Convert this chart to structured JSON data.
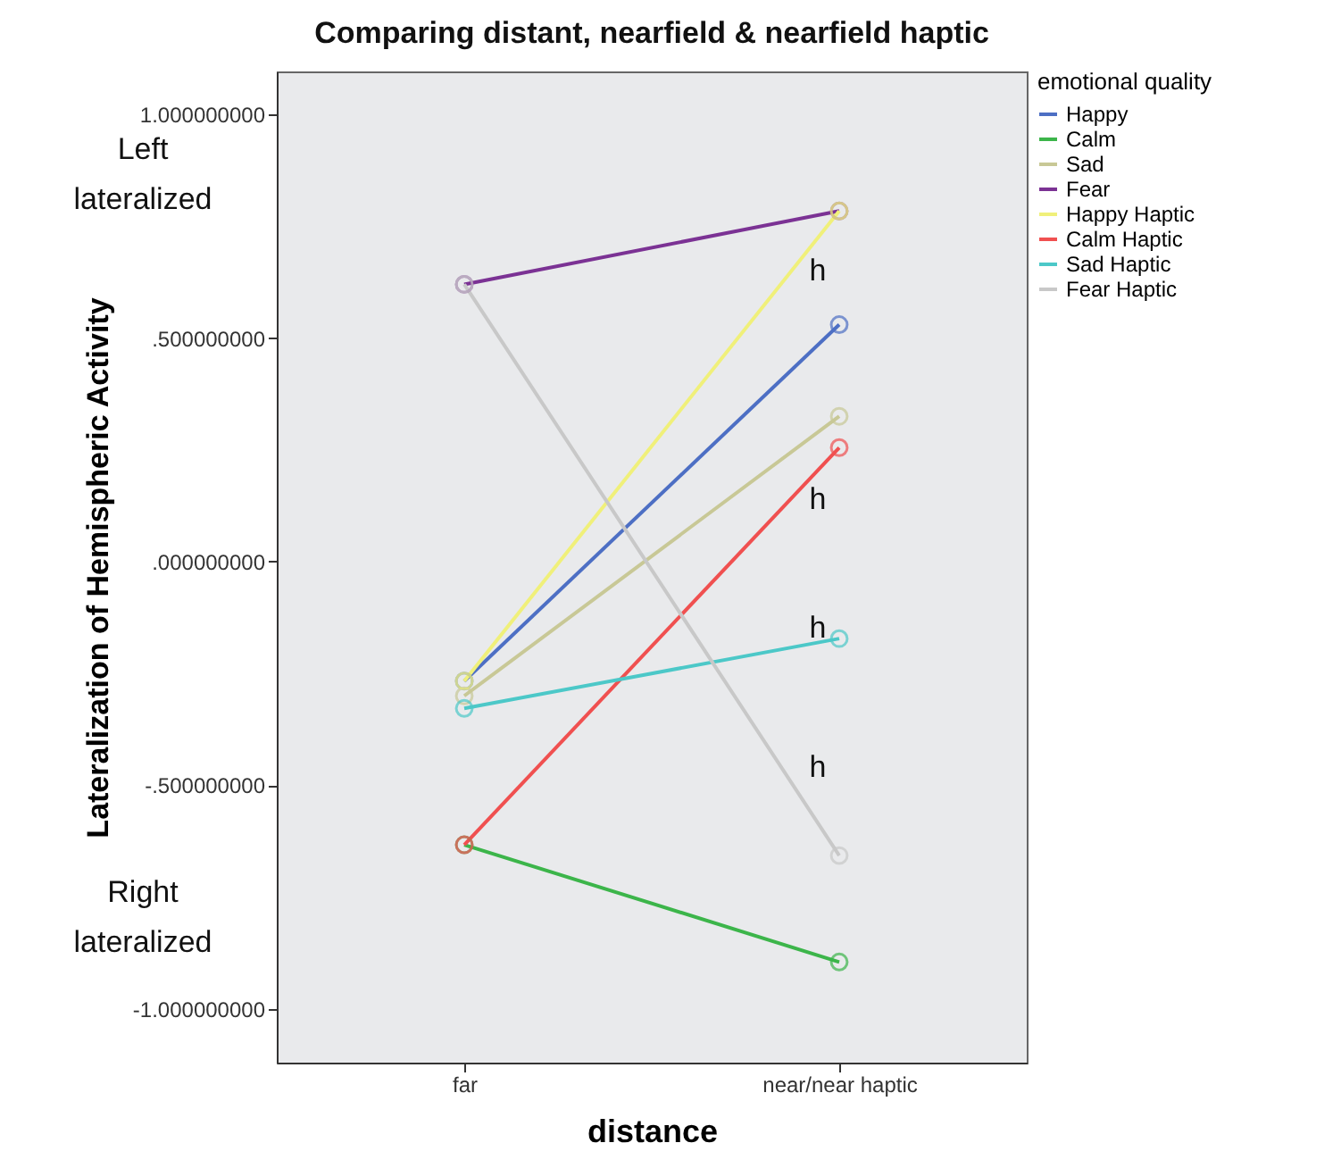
{
  "chart_data": {
    "type": "line",
    "title": "Comparing distant, nearfield & nearfield haptic",
    "xlabel": "distance",
    "ylabel": "Lateralization of Hemispheric Activity",
    "legend_title": "emotional quality",
    "legend": "right",
    "marker": "circle",
    "grid": false,
    "categories": [
      "far",
      "near/near haptic"
    ],
    "ylim": [
      -1.12,
      1.096
    ],
    "yticks": [
      {
        "value": -1,
        "label": "-1.000000000"
      },
      {
        "value": -0.5,
        "label": "-.500000000"
      },
      {
        "value": 0,
        "label": ".000000000"
      },
      {
        "value": 0.5,
        "label": ".500000000"
      },
      {
        "value": 1,
        "label": "1.000000000"
      }
    ],
    "series": [
      {
        "name": "Happy",
        "color": "#4d6fc4",
        "values": [
          -0.267,
          0.53
        ]
      },
      {
        "name": "Calm",
        "color": "#3cb54a",
        "values": [
          -0.633,
          -0.895
        ]
      },
      {
        "name": "Sad",
        "color": "#c8c896",
        "values": [
          -0.3,
          0.325
        ]
      },
      {
        "name": "Fear",
        "color": "#7b3294",
        "values": [
          0.62,
          0.784
        ]
      },
      {
        "name": "Happy Haptic",
        "color": "#f0f07a",
        "values": [
          -0.267,
          0.784
        ]
      },
      {
        "name": "Calm Haptic",
        "color": "#f05050",
        "values": [
          -0.633,
          0.255
        ]
      },
      {
        "name": "Sad Haptic",
        "color": "#4cc8c8",
        "values": [
          -0.328,
          -0.172
        ]
      },
      {
        "name": "Fear Haptic",
        "color": "#c8c8c8",
        "values": [
          0.62,
          -0.657
        ]
      }
    ],
    "annotations": [
      "h",
      "h",
      "h",
      "h",
      "Left\nlateralized",
      "Right\nlateralized"
    ]
  }
}
